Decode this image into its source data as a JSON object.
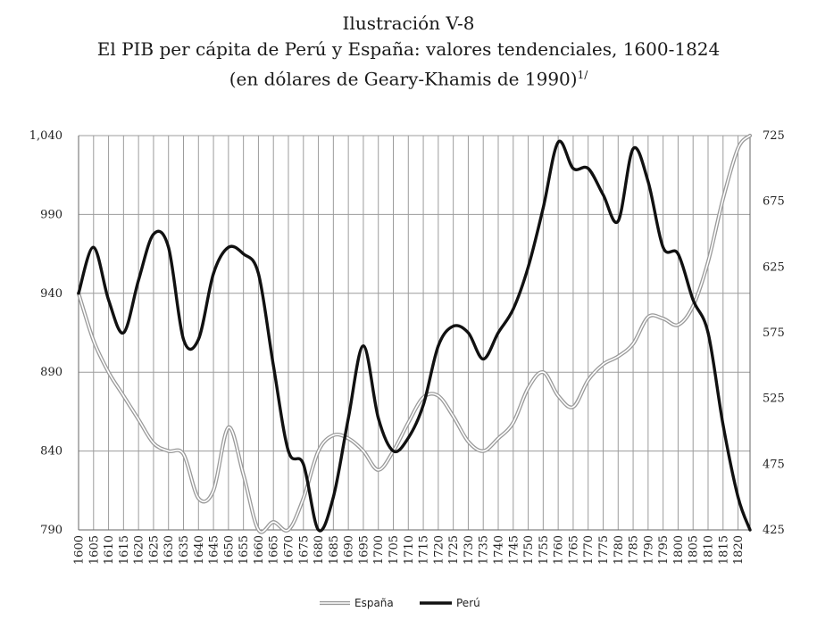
{
  "title": {
    "line1": "Ilustración V-8",
    "line2": "El PIB per cápita de Perú y España: valores tendenciales, 1600-1824",
    "line3": "(en dólares de Geary-Khamis de 1990)",
    "note_mark": "1/"
  },
  "chart_data": {
    "type": "line",
    "title": "El PIB per cápita de Perú y España: valores tendenciales, 1600-1824",
    "subtitle": "(en dólares de Geary-Khamis de 1990)",
    "x_categories": [
      "1600",
      "1605",
      "1610",
      "1615",
      "1620",
      "1625",
      "1630",
      "1635",
      "1640",
      "1645",
      "1650",
      "1655",
      "1660",
      "1665",
      "1670",
      "1675",
      "1680",
      "1685",
      "1690",
      "1695",
      "1700",
      "1705",
      "1710",
      "1715",
      "1720",
      "1725",
      "1730",
      "1735",
      "1740",
      "1745",
      "1750",
      "1755",
      "1760",
      "1765",
      "1770",
      "1775",
      "1780",
      "1785",
      "1790",
      "1795",
      "1800",
      "1805",
      "1810",
      "1815",
      "1820"
    ],
    "xlim": [
      1600,
      1824
    ],
    "y_left": {
      "ylim": [
        790,
        1040
      ],
      "ticks": [
        "1,040",
        "990",
        "940",
        "890",
        "840",
        "790"
      ],
      "tick_values": [
        1040,
        990,
        940,
        890,
        840,
        790
      ]
    },
    "y_right": {
      "ylim": [
        425,
        725
      ],
      "ticks": [
        "725",
        "675",
        "625",
        "575",
        "525",
        "475",
        "425"
      ],
      "tick_values": [
        725,
        675,
        625,
        575,
        525,
        475,
        425
      ]
    },
    "grid": true,
    "legend_position": "bottom-center",
    "series": [
      {
        "name": "España",
        "axis": "left",
        "color": "#9a9a9a",
        "style": "double-line",
        "x": [
          1600,
          1605,
          1610,
          1615,
          1620,
          1625,
          1630,
          1635,
          1640,
          1645,
          1650,
          1655,
          1660,
          1665,
          1670,
          1675,
          1680,
          1685,
          1690,
          1695,
          1700,
          1705,
          1710,
          1715,
          1720,
          1725,
          1730,
          1735,
          1740,
          1745,
          1750,
          1755,
          1760,
          1765,
          1770,
          1775,
          1780,
          1785,
          1790,
          1795,
          1800,
          1805,
          1810,
          1815,
          1820,
          1824
        ],
        "values": [
          940,
          910,
          890,
          875,
          860,
          845,
          840,
          838,
          810,
          815,
          855,
          825,
          790,
          795,
          790,
          810,
          840,
          850,
          848,
          840,
          828,
          840,
          858,
          874,
          875,
          862,
          846,
          840,
          848,
          858,
          880,
          890,
          875,
          868,
          885,
          895,
          900,
          908,
          925,
          924,
          920,
          932,
          960,
          1000,
          1032,
          1040
        ]
      },
      {
        "name": "Perú",
        "axis": "right",
        "color": "#111111",
        "style": "solid",
        "x": [
          1600,
          1605,
          1610,
          1615,
          1620,
          1625,
          1630,
          1635,
          1640,
          1645,
          1650,
          1655,
          1660,
          1665,
          1670,
          1675,
          1680,
          1685,
          1690,
          1695,
          1700,
          1705,
          1710,
          1715,
          1720,
          1725,
          1730,
          1735,
          1740,
          1745,
          1750,
          1755,
          1760,
          1765,
          1770,
          1775,
          1780,
          1785,
          1790,
          1795,
          1800,
          1805,
          1810,
          1815,
          1820,
          1824
        ],
        "values": [
          605,
          640,
          600,
          575,
          615,
          650,
          640,
          570,
          570,
          620,
          640,
          635,
          620,
          550,
          485,
          475,
          425,
          450,
          510,
          565,
          510,
          485,
          495,
          520,
          565,
          580,
          575,
          555,
          575,
          593,
          625,
          670,
          720,
          700,
          700,
          680,
          660,
          715,
          690,
          640,
          635,
          600,
          575,
          505,
          450,
          425
        ]
      }
    ]
  }
}
